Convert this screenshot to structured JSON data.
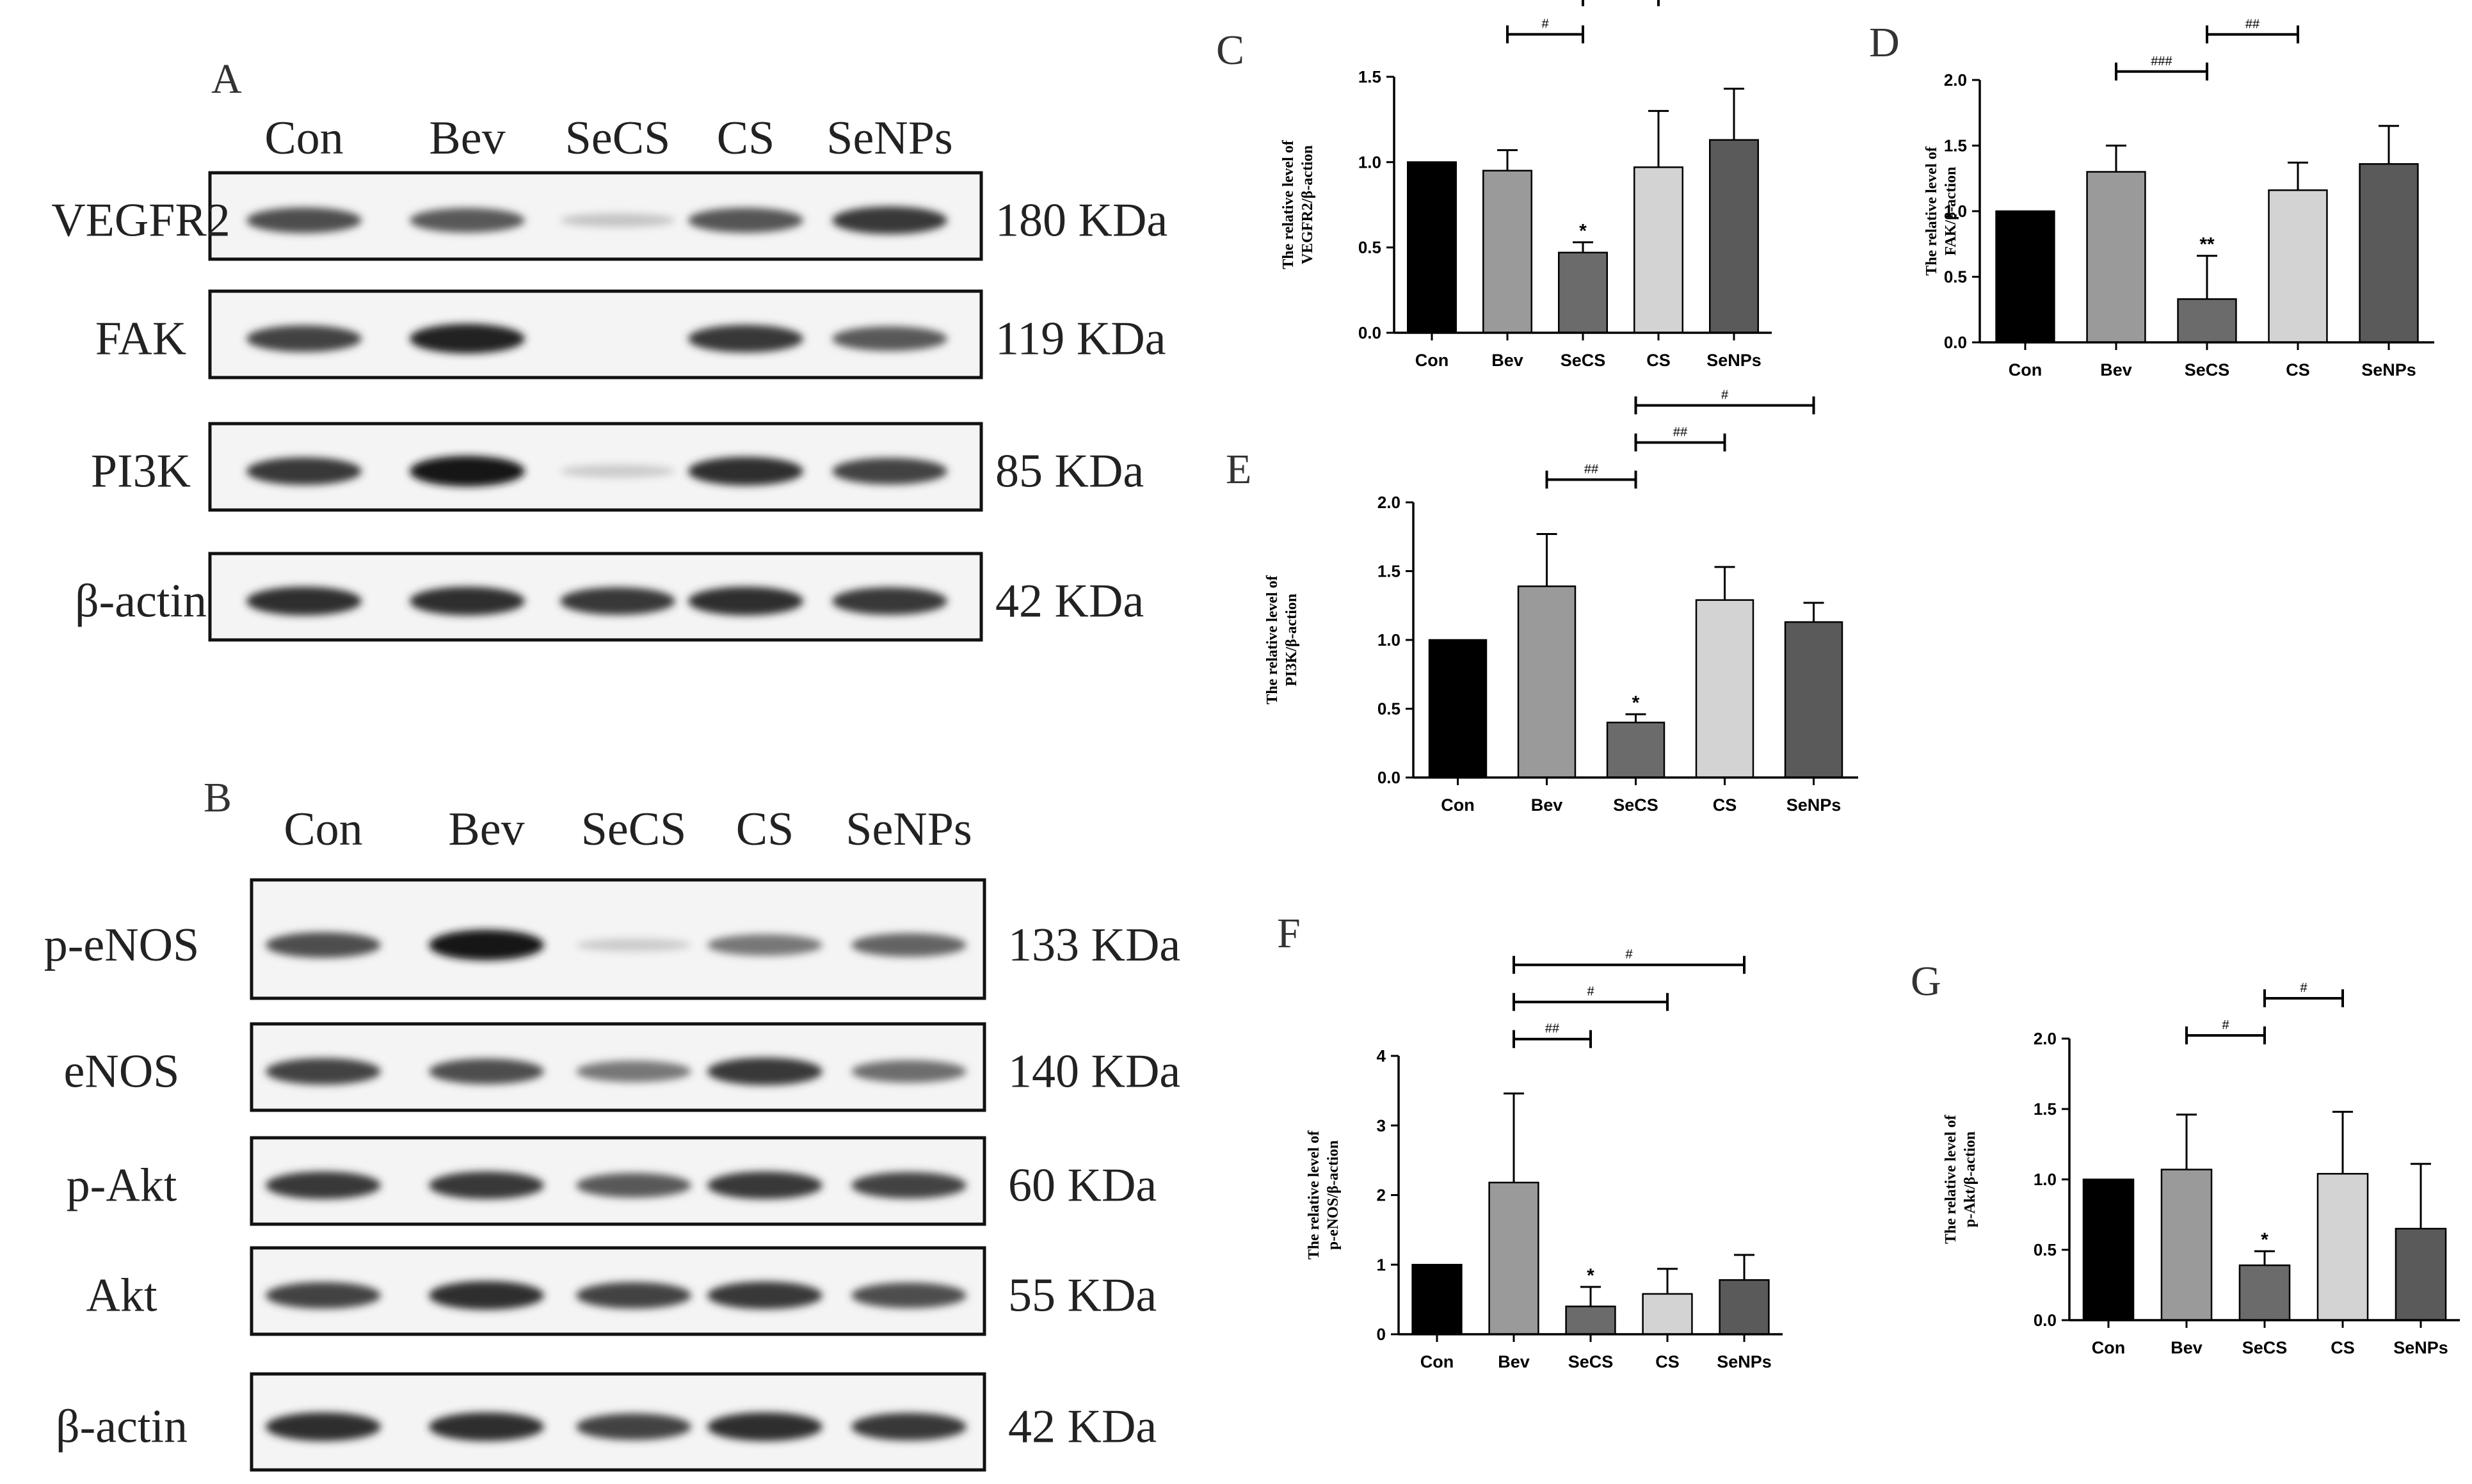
{
  "panels": {
    "A": {
      "letter": "A",
      "lanes": [
        "Con",
        "Bev",
        "SeCS",
        "CS",
        "SeNPs"
      ],
      "blots": [
        {
          "name": "VEGFR2",
          "mw": "180 KDa",
          "intensities": [
            0.75,
            0.7,
            0.18,
            0.72,
            0.85
          ]
        },
        {
          "name": "FAK",
          "mw": "119 KDa",
          "intensities": [
            0.8,
            0.95,
            0.0,
            0.85,
            0.7
          ]
        },
        {
          "name": "PI3K",
          "mw": "85 KDa",
          "intensities": [
            0.85,
            1.0,
            0.15,
            0.9,
            0.8
          ]
        },
        {
          "name": "β-actin",
          "mw": "42 KDa",
          "intensities": [
            0.9,
            0.9,
            0.85,
            0.9,
            0.85
          ]
        }
      ]
    },
    "B": {
      "letter": "B",
      "lanes": [
        "Con",
        "Bev",
        "SeCS",
        "CS",
        "SeNPs"
      ],
      "blots": [
        {
          "name": "p-eNOS",
          "mw": "133 KDa",
          "intensities": [
            0.75,
            1.0,
            0.15,
            0.55,
            0.65
          ]
        },
        {
          "name": "eNOS",
          "mw": "140 KDa",
          "intensities": [
            0.8,
            0.75,
            0.55,
            0.85,
            0.6
          ]
        },
        {
          "name": "p-Akt",
          "mw": "60 KDa",
          "intensities": [
            0.85,
            0.85,
            0.7,
            0.85,
            0.8
          ]
        },
        {
          "name": "Akt",
          "mw": "55 KDa",
          "intensities": [
            0.8,
            0.9,
            0.8,
            0.85,
            0.75
          ]
        },
        {
          "name": "β-actin",
          "mw": "42 KDa",
          "intensities": [
            0.9,
            0.9,
            0.8,
            0.9,
            0.85
          ]
        }
      ]
    }
  },
  "chart_data": [
    {
      "letter": "C",
      "type": "bar",
      "categories": [
        "Con",
        "Bev",
        "SeCS",
        "CS",
        "SeNPs"
      ],
      "values": [
        1.0,
        0.95,
        0.47,
        0.97,
        1.13
      ],
      "errors": [
        0,
        0.12,
        0.06,
        0.33,
        0.3
      ],
      "ylabel_line1": "The relative level of",
      "ylabel_line2": "VEGFR2/β-action",
      "ylim": [
        0,
        1.5
      ],
      "yticks": [
        "0.0",
        "0.5",
        "1.0",
        "1.5"
      ],
      "stars": [
        {
          "index": 2,
          "text": "*"
        }
      ],
      "brackets": [
        {
          "from": 1,
          "to": 2,
          "text": "#"
        },
        {
          "from": 2,
          "to": 3,
          "text": "#"
        },
        {
          "from": 2,
          "to": 4,
          "text": "##"
        }
      ],
      "bar_colors": [
        "#000000",
        "#9a9a9a",
        "#6b6b6b",
        "#d3d3d3",
        "#5a5a5a"
      ]
    },
    {
      "letter": "D",
      "type": "bar",
      "categories": [
        "Con",
        "Bev",
        "SeCS",
        "CS",
        "SeNPs"
      ],
      "values": [
        1.0,
        1.3,
        0.33,
        1.16,
        1.36
      ],
      "errors": [
        0,
        0.2,
        0.33,
        0.21,
        0.29
      ],
      "ylabel_line1": "The relative level of",
      "ylabel_line2": "FAK/β-action",
      "ylim": [
        0,
        2.0
      ],
      "yticks": [
        "0.0",
        "0.5",
        "1.0",
        "1.5",
        "2.0"
      ],
      "stars": [
        {
          "index": 2,
          "text": "**"
        }
      ],
      "brackets": [
        {
          "from": 1,
          "to": 2,
          "text": "###"
        },
        {
          "from": 2,
          "to": 3,
          "text": "##"
        }
      ],
      "bar_colors": [
        "#000000",
        "#9a9a9a",
        "#6b6b6b",
        "#d3d3d3",
        "#5a5a5a"
      ]
    },
    {
      "letter": "E",
      "type": "bar",
      "categories": [
        "Con",
        "Bev",
        "SeCS",
        "CS",
        "SeNPs"
      ],
      "values": [
        1.0,
        1.39,
        0.4,
        1.29,
        1.13
      ],
      "errors": [
        0,
        0.38,
        0.06,
        0.24,
        0.14
      ],
      "ylabel_line1": "The relative level of",
      "ylabel_line2": "PI3K/β-action",
      "ylim": [
        0,
        2.0
      ],
      "yticks": [
        "0.0",
        "0.5",
        "1.0",
        "1.5",
        "2.0"
      ],
      "stars": [
        {
          "index": 2,
          "text": "*"
        }
      ],
      "brackets": [
        {
          "from": 1,
          "to": 2,
          "text": "##"
        },
        {
          "from": 2,
          "to": 3,
          "text": "##"
        },
        {
          "from": 2,
          "to": 4,
          "text": "#"
        }
      ],
      "bar_colors": [
        "#000000",
        "#9a9a9a",
        "#6b6b6b",
        "#d3d3d3",
        "#5a5a5a"
      ]
    },
    {
      "letter": "F",
      "type": "bar",
      "categories": [
        "Con",
        "Bev",
        "SeCS",
        "CS",
        "SeNPs"
      ],
      "values": [
        1.0,
        2.18,
        0.4,
        0.58,
        0.78
      ],
      "errors": [
        0,
        1.28,
        0.28,
        0.36,
        0.36
      ],
      "ylabel_line1": "The relative level of",
      "ylabel_line2": "p-eNOS/β-action",
      "ylim": [
        0,
        4
      ],
      "yticks": [
        "0",
        "1",
        "2",
        "3",
        "4"
      ],
      "stars": [
        {
          "index": 2,
          "text": "*"
        }
      ],
      "brackets": [
        {
          "from": 1,
          "to": 2,
          "text": "##"
        },
        {
          "from": 1,
          "to": 3,
          "text": "#"
        },
        {
          "from": 1,
          "to": 4,
          "text": "#"
        }
      ],
      "bar_colors": [
        "#000000",
        "#9a9a9a",
        "#6b6b6b",
        "#d3d3d3",
        "#5a5a5a"
      ]
    },
    {
      "letter": "G",
      "type": "bar",
      "categories": [
        "Con",
        "Bev",
        "SeCS",
        "CS",
        "SeNPs"
      ],
      "values": [
        1.0,
        1.07,
        0.39,
        1.04,
        0.65
      ],
      "errors": [
        0,
        0.39,
        0.1,
        0.44,
        0.46
      ],
      "ylabel_line1": "The relative level of",
      "ylabel_line2": "p-Akt/β-action",
      "ylim": [
        0,
        2.0
      ],
      "yticks": [
        "0.0",
        "0.5",
        "1.0",
        "1.5",
        "2.0"
      ],
      "stars": [
        {
          "index": 2,
          "text": "*"
        }
      ],
      "brackets": [
        {
          "from": 1,
          "to": 2,
          "text": "#"
        },
        {
          "from": 2,
          "to": 3,
          "text": "#"
        }
      ],
      "bar_colors": [
        "#000000",
        "#9a9a9a",
        "#6b6b6b",
        "#d3d3d3",
        "#5a5a5a"
      ]
    }
  ]
}
